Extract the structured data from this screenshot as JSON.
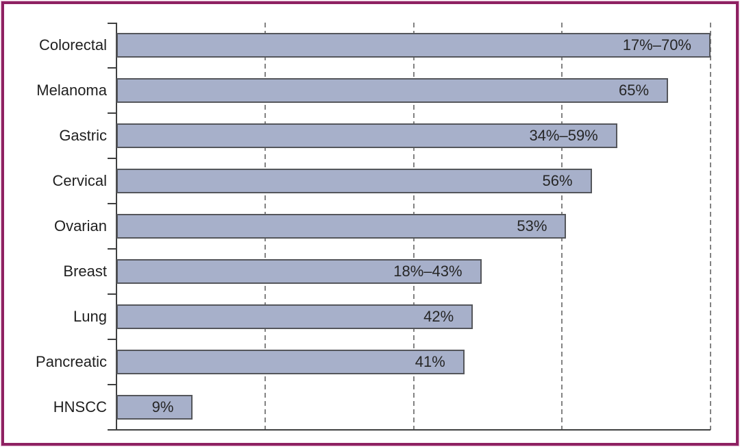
{
  "figure": {
    "frame_color": "#8e2162",
    "background_color": "#ffffff"
  },
  "chart_data": {
    "type": "bar",
    "orientation": "horizontal",
    "title": "",
    "xlabel": "",
    "ylabel": "",
    "categories": [
      "Colorectal",
      "Melanoma",
      "Gastric",
      "Cervical",
      "Ovarian",
      "Breast",
      "Lung",
      "Pancreatic",
      "HNSCC"
    ],
    "values": [
      70,
      65,
      59,
      56,
      53,
      43,
      42,
      41,
      9
    ],
    "bar_labels": [
      "17%–70%",
      "65%",
      "34%–59%",
      "56%",
      "53%",
      "18%–43%",
      "42%",
      "41%",
      "9%"
    ],
    "unit": "%",
    "xlim": [
      0,
      70
    ],
    "gridline_values": [
      17.5,
      35,
      52.5,
      70
    ],
    "grid_style": "dashed-vertical",
    "axis_tick_marks": "between-categories",
    "legend_position": "none",
    "colors": {
      "bar_fill": "#a7b0ca",
      "bar_border": "#54565b",
      "axis": "#3f4040",
      "gridline": "#828282",
      "label_text": "#1f1f1f"
    }
  }
}
